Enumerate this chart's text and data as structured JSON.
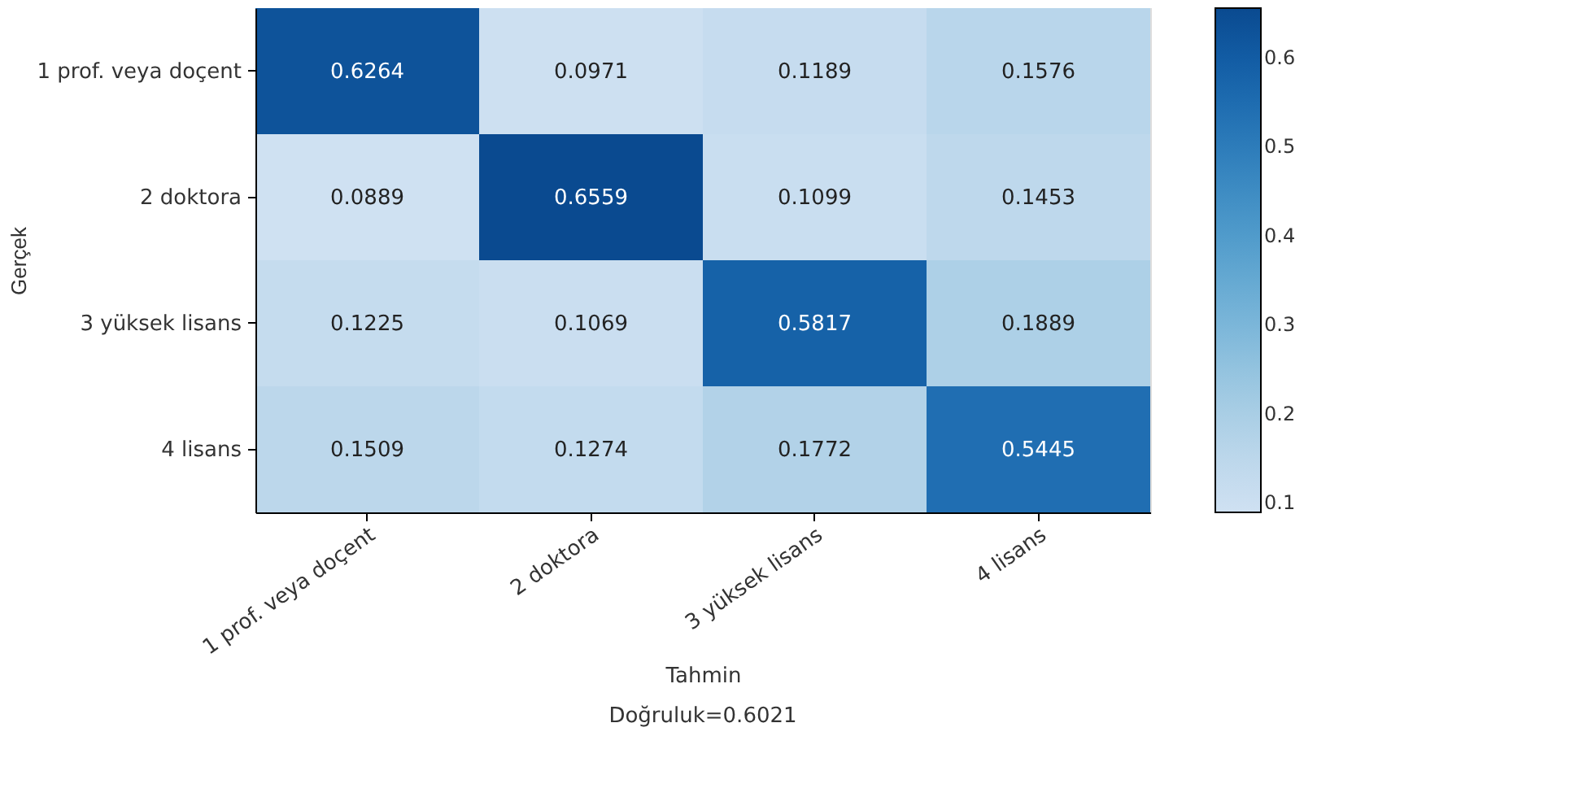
{
  "chart_data": {
    "type": "heatmap",
    "xlabel": "Tahmin",
    "ylabel": "Gerçek",
    "categories": [
      "1 prof. veya doçent",
      "2 doktora",
      "3 yüksek lisans",
      "4 lisans"
    ],
    "y_categories": [
      "1 prof. veya doçent",
      "2 doktora",
      "3 yüksek lisans",
      "4 lisans"
    ],
    "cells": [
      [
        0.6264,
        0.0971,
        0.1189,
        0.1576
      ],
      [
        0.0889,
        0.6559,
        0.1099,
        0.1453
      ],
      [
        0.1225,
        0.1069,
        0.5817,
        0.1889
      ],
      [
        0.1509,
        0.1274,
        0.1772,
        0.5445
      ]
    ],
    "data_labels": true,
    "clim": [
      0.0889,
      0.6559
    ],
    "cticks": [
      0.1,
      0.2,
      0.3,
      0.4,
      0.5,
      0.6
    ],
    "annotations": [
      "Doğruluk=0.6021"
    ]
  }
}
